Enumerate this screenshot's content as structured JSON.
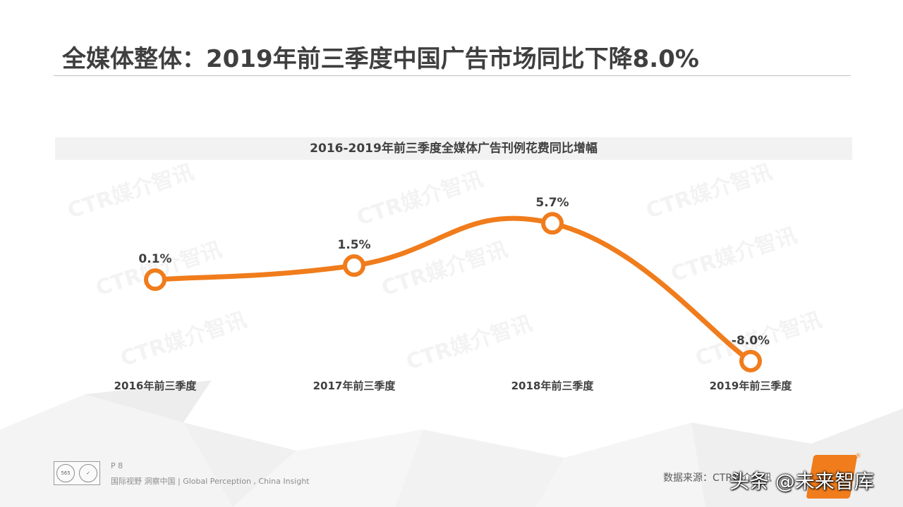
{
  "page": {
    "title": "全媒体整体：2019年前三季度中国广告市场同比下降8.0%",
    "page_number": "P 8",
    "slogan": "国际视野  洞察中国 |  Global Perception , China Insight",
    "source": "数据来源：CTR媒介智讯",
    "watermark": "CTR媒介智讯",
    "overlay_text": "头条 @未来智库",
    "reg_mark": "®",
    "logo_text": "565"
  },
  "colors": {
    "line": "#f07c1c",
    "marker_fill": "#ffffff",
    "title": "#3f3f3f",
    "title_bar_bg": "#f2f2f2",
    "rule": "#bfbfbf"
  },
  "chart_data": {
    "type": "line",
    "title": "2016-2019年前三季度全媒体广告刊例花费同比增幅",
    "categories": [
      "2016年前三季度",
      "2017年前三季度",
      "2018年前三季度",
      "2019年前三季度"
    ],
    "series": [
      {
        "values": [
          0.1,
          1.5,
          5.7,
          -8.0
        ]
      }
    ],
    "data_labels": [
      "0.1%",
      "1.5%",
      "5.7%",
      "-8.0%"
    ],
    "unit": "%",
    "ylim": [
      -8.5,
      6.2
    ],
    "smooth": true,
    "grid": false,
    "legend": "none",
    "xlabel": "",
    "ylabel": ""
  }
}
